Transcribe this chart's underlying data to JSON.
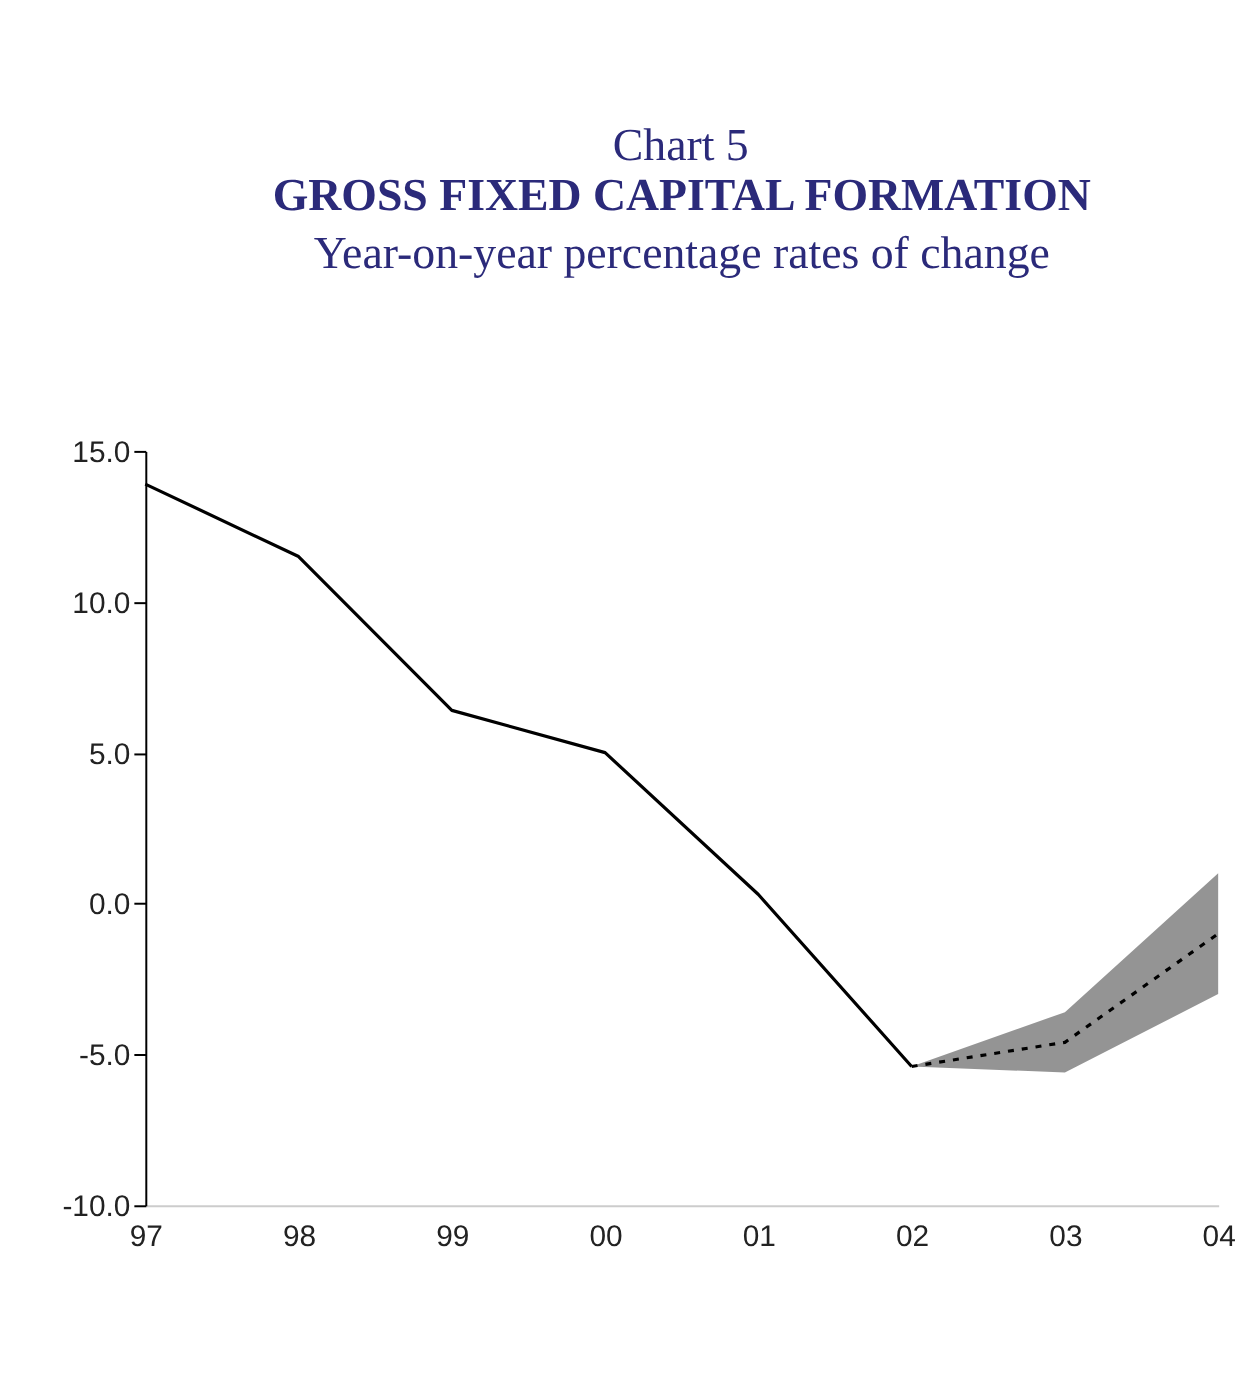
{
  "chart_data": {
    "type": "line",
    "title": "GROSS FIXED CAPITAL FORMATION",
    "subtitle": "Year-on-year percentage rates of change",
    "annotations": [
      "Chart 5"
    ],
    "categories": [
      "97",
      "98",
      "99",
      "00",
      "01",
      "02",
      "03",
      "04"
    ],
    "series": [
      {
        "color": "#000000",
        "line_style": "solid",
        "values": [
          13.9,
          11.5,
          6.4,
          5.0,
          0.3,
          -5.4,
          null,
          null
        ]
      },
      {
        "color": "#000000",
        "line_style": "dashed",
        "values": [
          null,
          null,
          null,
          null,
          null,
          -5.4,
          -4.6,
          -1.0
        ],
        "lower": [
          null,
          null,
          null,
          null,
          null,
          -5.4,
          -5.6,
          -3.0
        ],
        "upper": [
          null,
          null,
          null,
          null,
          null,
          -5.4,
          -3.6,
          1.0
        ]
      }
    ],
    "ylim": [
      -10,
      15
    ],
    "yticks": [
      {
        "value": -10,
        "label": "-10.0"
      },
      {
        "value": -5,
        "label": "-5.0"
      },
      {
        "value": 0,
        "label": "0.0"
      },
      {
        "value": 5,
        "label": "5.0"
      },
      {
        "value": 10,
        "label": "10.0"
      },
      {
        "value": 15,
        "label": "15.0"
      }
    ],
    "grid": false,
    "marker": "none"
  }
}
